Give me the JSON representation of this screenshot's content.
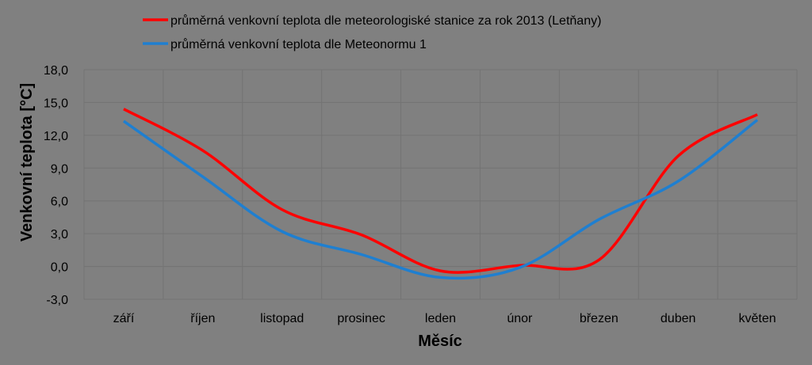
{
  "chart_data": {
    "type": "line",
    "categories": [
      "září",
      "říjen",
      "listopad",
      "prosinec",
      "leden",
      "únor",
      "březen",
      "duben",
      "květen"
    ],
    "series": [
      {
        "name": "průměrná venkovní teplota dle meteorologiské stanice za rok 2013 (Letňany)",
        "color": "#ff0000",
        "values": [
          14.4,
          10.6,
          5.2,
          2.9,
          -0.4,
          0.1,
          0.6,
          10.1,
          13.9
        ]
      },
      {
        "name": "průměrná venkovní teplota dle Meteonormu 1",
        "color": "#1f7fd0",
        "values": [
          13.3,
          8.2,
          3.2,
          1.1,
          -1.0,
          -0.1,
          4.3,
          7.8,
          13.4
        ]
      }
    ],
    "xlabel": "Měsíc",
    "ylabel": "Venkovní  teplota [°C]",
    "ylim": [
      -3.0,
      18.0
    ],
    "yticks": [
      "-3,0",
      "0,0",
      "3,0",
      "6,0",
      "9,0",
      "12,0",
      "15,0",
      "18,0"
    ],
    "ytick_values": [
      -3,
      0,
      3,
      6,
      9,
      12,
      15,
      18
    ],
    "grid": true,
    "legend_position": "top"
  }
}
